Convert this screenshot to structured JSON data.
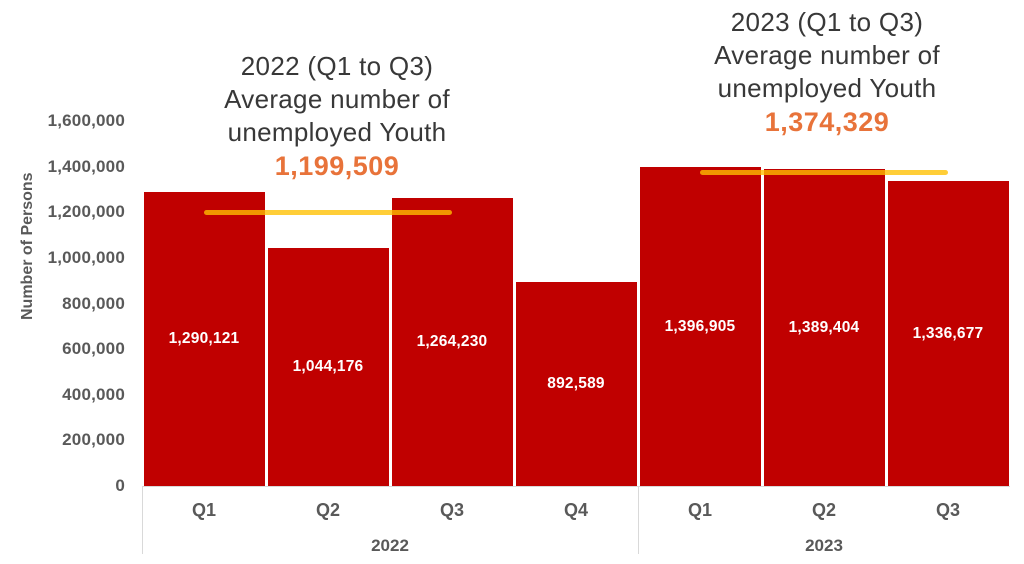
{
  "colors": {
    "bar_red": "#C00000",
    "avg_line_yellow": "#FFC000",
    "accent_orange": "#E8733A",
    "axis_text_gray": "#595959",
    "title_text_gray": "#383838",
    "axis_line_gray": "#D9D9D9"
  },
  "chart_data": {
    "type": "bar",
    "title": "",
    "xlabel": "",
    "ylabel": "Number of Persons",
    "ylim": [
      0,
      1600000
    ],
    "grid": "off",
    "legend": "none",
    "yticks": [
      {
        "value": 1600000,
        "label": "1,600,000"
      },
      {
        "value": 1400000,
        "label": "1,400,000"
      },
      {
        "value": 1200000,
        "label": "1,200,000"
      },
      {
        "value": 1000000,
        "label": "1,000,000"
      },
      {
        "value": 800000,
        "label": "800,000"
      },
      {
        "value": 600000,
        "label": "600,000"
      },
      {
        "value": 400000,
        "label": "400,000"
      },
      {
        "value": 200000,
        "label": "200,000"
      },
      {
        "value": 0,
        "label": "0"
      }
    ],
    "groups": [
      {
        "year": "2022",
        "categories": [
          "Q1",
          "Q2",
          "Q3",
          "Q4"
        ],
        "values": [
          1290121,
          1044176,
          1264230,
          892589
        ],
        "value_labels": [
          "1,290,121",
          "1,044,176",
          "1,264,230",
          "892,589"
        ],
        "annotation": {
          "title": "2022 (Q1 to Q3)\nAverage number of\nunemployed Youth",
          "value": 1199509,
          "value_label": "1,199,509",
          "line_span": [
            "Q1",
            "Q3"
          ]
        }
      },
      {
        "year": "2023",
        "categories": [
          "Q1",
          "Q2",
          "Q3"
        ],
        "values": [
          1396905,
          1389404,
          1336677
        ],
        "value_labels": [
          "1,396,905",
          "1,389,404",
          "1,336,677"
        ],
        "annotation": {
          "title": "2023 (Q1 to Q3)\nAverage number of\nunemployed Youth",
          "value": 1374329,
          "value_label": "1,374,329",
          "line_span": [
            "Q1",
            "Q3"
          ]
        }
      }
    ]
  }
}
